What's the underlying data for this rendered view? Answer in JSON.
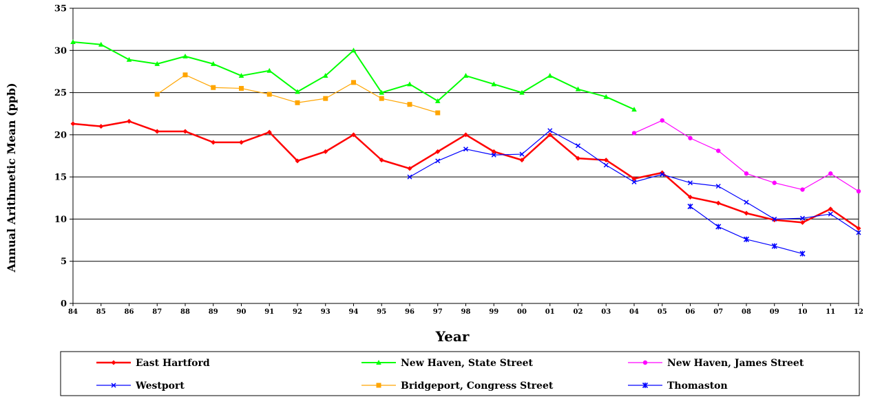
{
  "chart_data": {
    "type": "line",
    "title": "",
    "xlabel": "Year",
    "ylabel": "Annual Arithmetic Mean (ppb)",
    "categories": [
      "84",
      "85",
      "86",
      "87",
      "88",
      "89",
      "90",
      "91",
      "92",
      "93",
      "94",
      "95",
      "96",
      "97",
      "98",
      "99",
      "00",
      "01",
      "02",
      "03",
      "04",
      "05",
      "06",
      "07",
      "08",
      "09",
      "10",
      "11",
      "12"
    ],
    "ylim": [
      0,
      35
    ],
    "yticks": [
      0,
      5,
      10,
      15,
      20,
      25,
      30,
      35
    ],
    "grid": true,
    "legend_position": "bottom",
    "series": [
      {
        "name": "East Hartford",
        "color": "#ff0000",
        "marker": "diamond",
        "values": [
          21.3,
          21.0,
          21.6,
          20.4,
          20.4,
          19.1,
          19.1,
          20.3,
          16.9,
          18.0,
          20.0,
          17.0,
          16.0,
          18.0,
          20.0,
          18.0,
          17.0,
          20.0,
          17.2,
          17.0,
          14.8,
          15.5,
          12.6,
          11.9,
          10.7,
          9.9,
          9.6,
          11.2,
          8.9
        ]
      },
      {
        "name": "New Haven, State Street",
        "color": "#00ff00",
        "marker": "triangle",
        "values": [
          31.0,
          30.7,
          28.9,
          28.4,
          29.3,
          28.4,
          27.0,
          27.6,
          25.1,
          27.0,
          30.0,
          25.0,
          26.0,
          24.0,
          27.0,
          26.0,
          25.0,
          27.0,
          25.4,
          24.5,
          23.0,
          null,
          null,
          null,
          null,
          null,
          null,
          null,
          null
        ]
      },
      {
        "name": "New Haven, James Street",
        "color": "#ff00ff",
        "marker": "circle",
        "values": [
          null,
          null,
          null,
          null,
          null,
          null,
          null,
          null,
          null,
          null,
          null,
          null,
          null,
          null,
          null,
          null,
          null,
          null,
          null,
          null,
          20.2,
          21.7,
          19.6,
          18.1,
          15.4,
          14.3,
          13.5,
          15.4,
          13.3
        ]
      },
      {
        "name": "Westport",
        "color": "#0000ff",
        "marker": "x",
        "values": [
          null,
          null,
          null,
          null,
          null,
          null,
          null,
          null,
          null,
          null,
          null,
          null,
          15.0,
          16.9,
          18.3,
          17.6,
          17.7,
          20.5,
          18.7,
          16.4,
          14.4,
          15.3,
          14.3,
          13.9,
          12.0,
          10.0,
          10.1,
          10.6,
          8.4
        ]
      },
      {
        "name": "Bridgeport, Congress Street",
        "color": "#ffa500",
        "marker": "square",
        "values": [
          null,
          null,
          null,
          24.8,
          27.1,
          25.6,
          25.5,
          24.8,
          23.8,
          24.3,
          26.2,
          24.3,
          23.6,
          22.6,
          null,
          null,
          null,
          null,
          null,
          null,
          null,
          null,
          null,
          null,
          null,
          null,
          null,
          null,
          null
        ]
      },
      {
        "name": "Thomaston",
        "color": "#0000ff",
        "marker": "star",
        "values": [
          null,
          null,
          null,
          null,
          null,
          null,
          null,
          null,
          null,
          null,
          null,
          null,
          null,
          null,
          null,
          null,
          null,
          null,
          null,
          null,
          null,
          null,
          11.5,
          9.1,
          7.6,
          6.8,
          5.9,
          null,
          null
        ]
      }
    ]
  }
}
